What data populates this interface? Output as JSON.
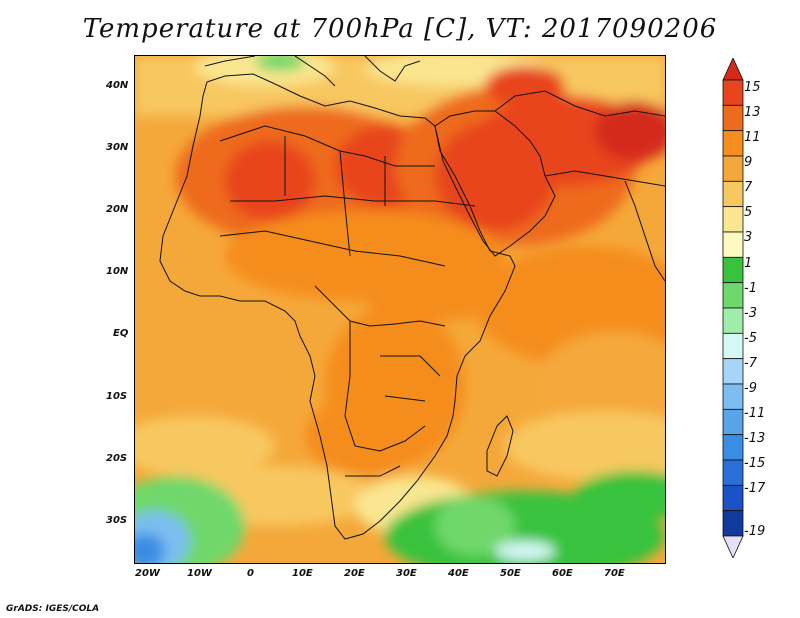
{
  "title": "Temperature at 700hPa [C], VT: 2017090206",
  "credit": "GrADS: IGES/COLA",
  "map": {
    "variable": "Temperature at 700hPa",
    "units": "C",
    "valid_time": "2017090206",
    "lat_labels": [
      "40N",
      "30N",
      "20N",
      "10N",
      "EQ",
      "10S",
      "20S",
      "30S"
    ],
    "lon_labels": [
      "20W",
      "10W",
      "0",
      "10E",
      "20E",
      "30E",
      "40E",
      "50E",
      "60E",
      "70E"
    ]
  },
  "colorbar": {
    "labels": [
      "15",
      "13",
      "11",
      "9",
      "7",
      "5",
      "3",
      "1",
      "-1",
      "-3",
      "-5",
      "-7",
      "-9",
      "-11",
      "-13",
      "-15",
      "-17",
      "-19"
    ],
    "colors": [
      "#d42a1a",
      "#e8441e",
      "#ee6a1c",
      "#f58d1f",
      "#f5a83a",
      "#f8c860",
      "#fae690",
      "#fdf7c0",
      "#39c23c",
      "#6fd86a",
      "#a0ecaa",
      "#d4f8f4",
      "#a5d6f7",
      "#7cbef1",
      "#57a5e8",
      "#3a8de4",
      "#2a6fd8",
      "#1b52c8",
      "#103a9c",
      "#0b1f70"
    ]
  }
}
